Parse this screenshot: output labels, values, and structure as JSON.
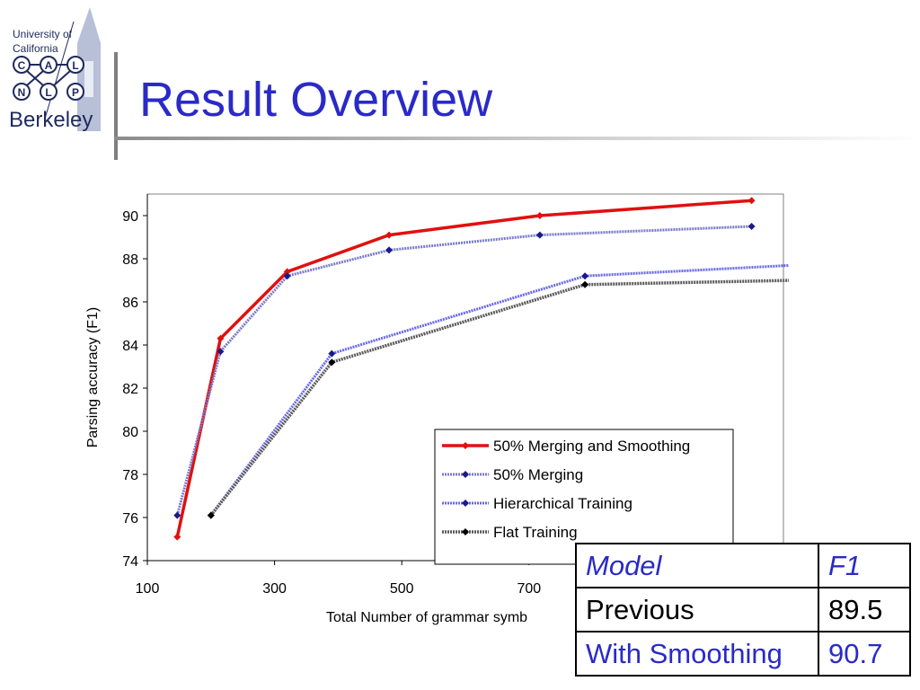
{
  "logo": {
    "university": "University of\nCalifornia",
    "letters": [
      "C",
      "A",
      "L",
      "N",
      "L",
      "P"
    ],
    "campus": "Berkeley"
  },
  "slide": {
    "title": "Result Overview"
  },
  "colors": {
    "title": "#2a2ac8",
    "red": "#e01010",
    "blue": "#4a4adf",
    "navy": "#1a1a8c",
    "gray": "#555555"
  },
  "chart_data": {
    "type": "line",
    "xlabel": "Total Number of grammar symb",
    "ylabel": "Parsing accuracy (F1)",
    "xlim": [
      100,
      1100
    ],
    "ylim": [
      74,
      91
    ],
    "xticks": [
      100,
      300,
      500,
      700
    ],
    "yticks": [
      74,
      76,
      78,
      80,
      82,
      84,
      86,
      88,
      90
    ],
    "grid": false,
    "legend": "bottom-right",
    "series": [
      {
        "name": "50% Merging and Smoothing",
        "x": [
          147,
          215,
          320,
          480,
          717,
          1050
        ],
        "y": [
          75.1,
          84.3,
          87.4,
          89.1,
          90.0,
          90.7
        ]
      },
      {
        "name": "50% Merging",
        "x": [
          147,
          215,
          320,
          480,
          717,
          1050
        ],
        "y": [
          76.1,
          83.7,
          87.2,
          88.4,
          89.1,
          89.5
        ]
      },
      {
        "name": "Hierarchical Training",
        "x": [
          200,
          390,
          788,
          1115
        ],
        "y": [
          76.1,
          83.6,
          87.2,
          87.7
        ]
      },
      {
        "name": "Flat Training",
        "x": [
          200,
          390,
          788,
          1115
        ],
        "y": [
          76.1,
          83.2,
          86.8,
          87.0
        ]
      }
    ]
  },
  "table": {
    "headers": [
      "Model",
      "F1"
    ],
    "rows": [
      [
        "Previous",
        "89.5"
      ],
      [
        "With Smoothing",
        "90.7"
      ]
    ]
  }
}
